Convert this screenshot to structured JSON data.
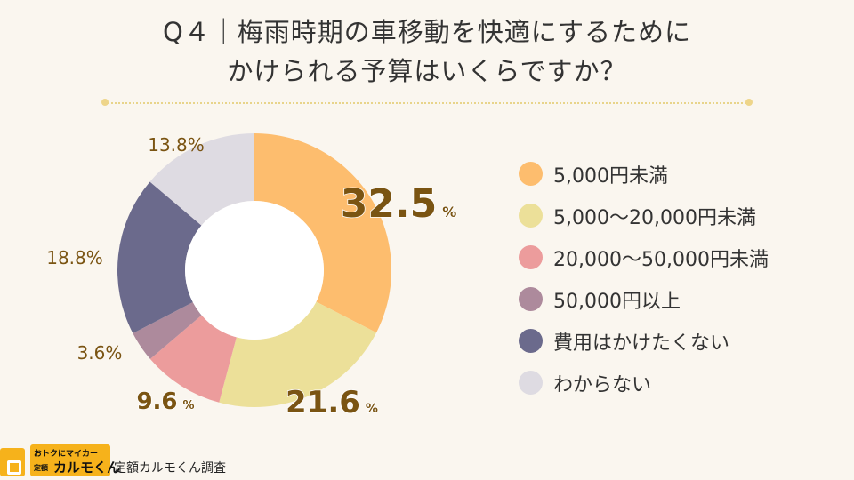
{
  "title": {
    "line1": "Q４｜梅雨時期の車移動を快適にするために",
    "line2": "かけられる予算はいくらですか？"
  },
  "chart_data": {
    "type": "pie",
    "percent_sign": "%",
    "slices": [
      {
        "label": "5,000円未満",
        "value": 32.5,
        "display": "32.5",
        "color": "#fdbd6e"
      },
      {
        "label": "5,000～20,000円未満",
        "value": 21.6,
        "display": "21.6",
        "color": "#ece099"
      },
      {
        "label": "20,000～50,000円未満",
        "value": 9.6,
        "display": "9.6",
        "color": "#ec9c9c"
      },
      {
        "label": "50,000円以上",
        "value": 3.6,
        "display": "3.6",
        "color": "#ad8a9c"
      },
      {
        "label": "費用はかけたくない",
        "value": 18.8,
        "display": "18.8",
        "color": "#6b6a8c"
      },
      {
        "label": "わからない",
        "value": 13.8,
        "display": "13.8",
        "color": "#dedbe2"
      }
    ],
    "legend_placement": "right"
  },
  "footer": {
    "logo_tagline": "おトクにマイカー",
    "logo_prefix": "定額",
    "logo_name": "カルモくん",
    "source": "定額カルモくん調査"
  },
  "colors": {
    "background": "#faf6ef",
    "label_text": "#7a5412",
    "brand": "#f6b21b"
  }
}
